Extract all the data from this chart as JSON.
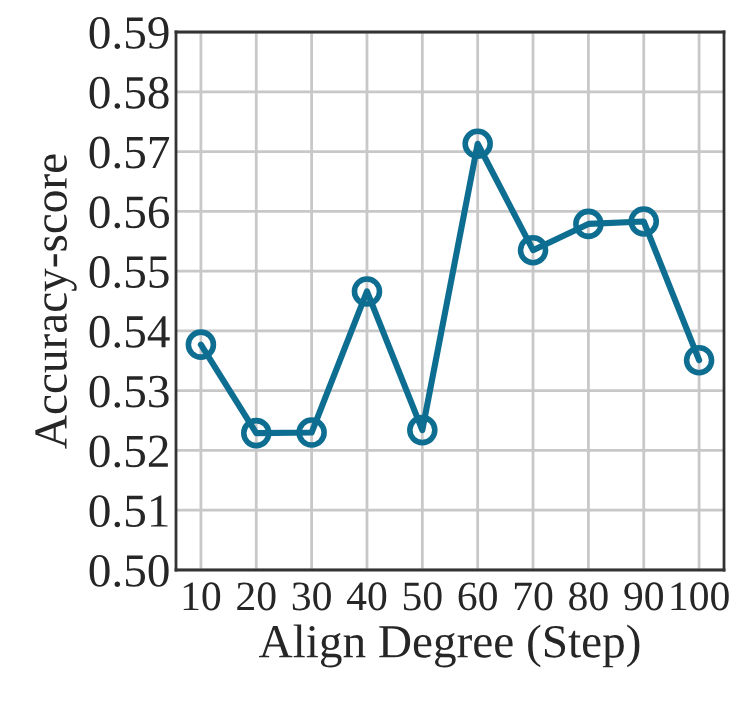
{
  "chart_data": {
    "type": "line",
    "xlabel": "Align Degree (Step)",
    "ylabel": "Accuracy-score",
    "categories": [
      "10",
      "20",
      "30",
      "40",
      "50",
      "60",
      "70",
      "80",
      "90",
      "100"
    ],
    "series": [
      {
        "color": "#0e6e91",
        "values": [
          0.5377,
          0.5229,
          0.523,
          0.5466,
          0.5234,
          0.5713,
          0.5535,
          0.5579,
          0.5583,
          0.5351
        ]
      }
    ],
    "ylim": [
      0.5,
      0.59
    ],
    "yticks": [
      {
        "value": 0.5,
        "label": "0.50"
      },
      {
        "value": 0.51,
        "label": "0.51"
      },
      {
        "value": 0.52,
        "label": "0.52"
      },
      {
        "value": 0.53,
        "label": "0.53"
      },
      {
        "value": 0.54,
        "label": "0.54"
      },
      {
        "value": 0.55,
        "label": "0.55"
      },
      {
        "value": 0.56,
        "label": "0.56"
      },
      {
        "value": 0.57,
        "label": "0.57"
      },
      {
        "value": 0.58,
        "label": "0.58"
      },
      {
        "value": 0.59,
        "label": "0.59"
      }
    ],
    "grid": true,
    "marker": "circle",
    "line_style": "solid"
  }
}
